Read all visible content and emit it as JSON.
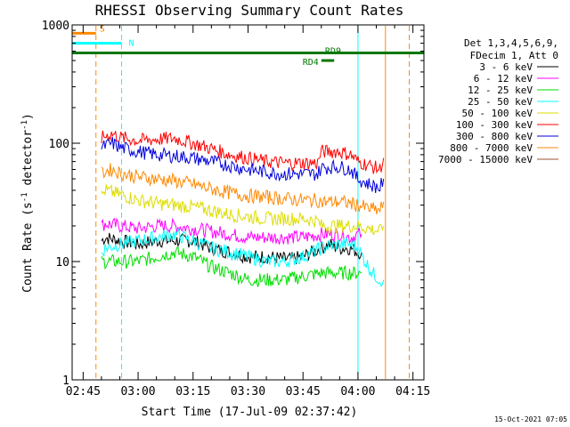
{
  "chart_data": {
    "type": "line",
    "title": "RHESSI Observing Summary Count Rates",
    "xlabel": "Start Time (17-Jul-09 02:37:42)",
    "ylabel_parts": [
      "Count Rate (s",
      "-1",
      " detector",
      "-1",
      ")"
    ],
    "y_scale": "log",
    "ylim": [
      1,
      1000
    ],
    "xlim_minutes": [
      162,
      258
    ],
    "x_ticks": [
      {
        "m": 165,
        "label": "02:45"
      },
      {
        "m": 180,
        "label": "03:00"
      },
      {
        "m": 195,
        "label": "03:15"
      },
      {
        "m": 210,
        "label": "03:30"
      },
      {
        "m": 225,
        "label": "03:45"
      },
      {
        "m": 240,
        "label": "04:00"
      },
      {
        "m": 255,
        "label": "04:15"
      }
    ],
    "y_ticks": [
      {
        "v": 1,
        "label": "1"
      },
      {
        "v": 10,
        "label": "10"
      },
      {
        "v": 100,
        "label": "100"
      },
      {
        "v": 1000,
        "label": "1000"
      }
    ],
    "legend_header": [
      "Det 1,3,4,5,6,9,",
      "FDecim 1, Att 0"
    ],
    "legend_placement": "right",
    "series": [
      {
        "name": "3 - 6 keV",
        "color": "#000000",
        "x": [
          170,
          171,
          175,
          180,
          185,
          190,
          195,
          200,
          205,
          210,
          215,
          220,
          222,
          225,
          230,
          232,
          235,
          238,
          240,
          241
        ],
        "y": [
          15,
          16,
          15,
          14,
          15,
          15,
          15,
          13,
          12,
          11,
          11,
          10.5,
          10.5,
          11,
          13,
          14,
          13,
          13,
          12,
          12
        ]
      },
      {
        "name": "6 - 12 keV",
        "color": "#ff00ff",
        "x": [
          170,
          171,
          175,
          180,
          185,
          190,
          195,
          200,
          205,
          210,
          215,
          220,
          225,
          230,
          235,
          238,
          240,
          241
        ],
        "y": [
          20,
          21,
          20,
          19,
          20,
          20,
          19,
          18,
          17,
          16,
          16,
          16,
          16,
          17,
          17,
          16,
          17,
          17
        ]
      },
      {
        "name": "12 - 25 keV",
        "color": "#00dd00",
        "x": [
          170,
          171,
          175,
          180,
          185,
          190,
          195,
          200,
          205,
          210,
          215,
          220,
          225,
          230,
          235,
          238,
          240,
          241
        ],
        "y": [
          10,
          10,
          10,
          10,
          11,
          12,
          11,
          9,
          8,
          7,
          7,
          7,
          7.5,
          8,
          8,
          8,
          8,
          8
        ]
      },
      {
        "name": "25 - 50 keV",
        "color": "#00ffff",
        "x": [
          170,
          171,
          175,
          180,
          185,
          190,
          195,
          200,
          205,
          210,
          215,
          220,
          225,
          230,
          235,
          238,
          240,
          242,
          244,
          246,
          247
        ],
        "y": [
          12,
          13,
          14,
          15,
          16,
          17,
          15,
          13,
          12,
          11,
          10,
          10,
          11,
          13,
          14,
          14,
          13,
          10,
          8,
          7,
          7
        ]
      },
      {
        "name": "50 - 100 keV",
        "color": "#dddd00",
        "x": [
          170,
          171,
          175,
          180,
          185,
          190,
          195,
          200,
          205,
          210,
          215,
          220,
          225,
          229,
          230,
          233,
          235,
          238,
          240,
          243,
          246,
          247
        ],
        "y": [
          36,
          40,
          37,
          33,
          31,
          30,
          29,
          27,
          25,
          24,
          23,
          23,
          23,
          22,
          20,
          20,
          20,
          20,
          20,
          19,
          18,
          20
        ]
      },
      {
        "name": "100 - 300 keV",
        "color": "#ff0000",
        "x": [
          170,
          171,
          173,
          175,
          180,
          185,
          190,
          195,
          200,
          205,
          210,
          215,
          220,
          225,
          229,
          230,
          233,
          235,
          238,
          240,
          243,
          246,
          247
        ],
        "y": [
          110,
          115,
          120,
          112,
          105,
          108,
          110,
          100,
          90,
          80,
          75,
          70,
          68,
          68,
          68,
          85,
          85,
          85,
          80,
          70,
          65,
          60,
          75
        ]
      },
      {
        "name": "300 - 800 keV",
        "color": "#0000dd",
        "x": [
          170,
          171,
          173,
          175,
          180,
          185,
          190,
          195,
          200,
          205,
          210,
          215,
          220,
          225,
          229,
          230,
          233,
          235,
          238,
          240,
          243,
          246,
          247
        ],
        "y": [
          90,
          95,
          100,
          92,
          85,
          80,
          78,
          75,
          70,
          65,
          60,
          57,
          55,
          55,
          55,
          62,
          63,
          63,
          60,
          50,
          45,
          42,
          50
        ]
      },
      {
        "name": "800 - 7000 keV",
        "color": "#ff8800",
        "x": [
          170,
          171,
          173,
          175,
          180,
          185,
          190,
          195,
          200,
          205,
          210,
          215,
          220,
          225,
          229,
          230,
          233,
          235,
          238,
          240,
          243,
          246,
          247
        ],
        "y": [
          55,
          58,
          60,
          56,
          52,
          50,
          48,
          45,
          41,
          38,
          36,
          35,
          34,
          33,
          33,
          32,
          32,
          32,
          31,
          30,
          28,
          27,
          32
        ]
      },
      {
        "name": "7000 - 15000 keV",
        "color": "#a0522d",
        "x": [],
        "y": []
      }
    ],
    "annotations": [
      {
        "label": "S",
        "color": "#ff8800",
        "x0": 162,
        "x1": 168.5,
        "y": 850
      },
      {
        "label": "N",
        "color": "#00ffff",
        "x0": 162,
        "x1": 175.5,
        "y": 700
      },
      {
        "label": "RD9",
        "color": "#007700",
        "x0": 162,
        "x1": 258,
        "y": 580
      },
      {
        "label": "RD4",
        "color": "#007700",
        "x0": 230,
        "x1": 233.5,
        "y": 500
      }
    ],
    "vertical_lines": [
      {
        "m": 168.5,
        "color": "#ff8800",
        "dash": true
      },
      {
        "m": 175.5,
        "color": "#00ffff",
        "dash": true
      },
      {
        "m": 240,
        "color": "#00ffff",
        "dash": false
      },
      {
        "m": 247.5,
        "color": "#ff8800",
        "dash": false
      },
      {
        "m": 254,
        "color": "#ff8800",
        "dash": true
      }
    ],
    "timestamp": "15-Oct-2021 07:05"
  }
}
